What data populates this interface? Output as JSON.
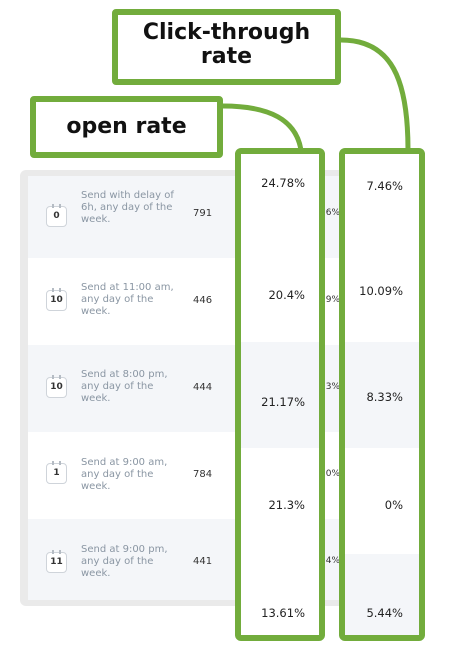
{
  "labels": {
    "click_through_rate": "Click-through rate",
    "open_rate": "open rate"
  },
  "colors": {
    "highlight": "#72ac3c",
    "row_shade": "#f4f6f9",
    "panel": "#eaeaea",
    "muted_text": "#8a96a3"
  },
  "rows": [
    {
      "badge": "0",
      "description": "Send with delay of 6h, any day of the week.",
      "count": "791",
      "peek": "6%",
      "open_rate": "24.78%",
      "ctr": "7.46%"
    },
    {
      "badge": "10",
      "description": "Send at 11:00 am, any day of the week.",
      "count": "446",
      "peek": "9%",
      "open_rate": "20.4%",
      "ctr": "10.09%"
    },
    {
      "badge": "10",
      "description": "Send at 8:00 pm, any day of the week.",
      "count": "444",
      "peek": "3%",
      "open_rate": "21.17%",
      "ctr": "8.33%"
    },
    {
      "badge": "1",
      "description": "Send at 9:00 am, any day of the week.",
      "count": "784",
      "peek": "0%",
      "open_rate": "21.3%",
      "ctr": "0%"
    },
    {
      "badge": "11",
      "description": "Send at 9:00 pm, any day of the week.",
      "count": "441",
      "peek": "4%",
      "open_rate": "13.61%",
      "ctr": "5.44%"
    }
  ]
}
